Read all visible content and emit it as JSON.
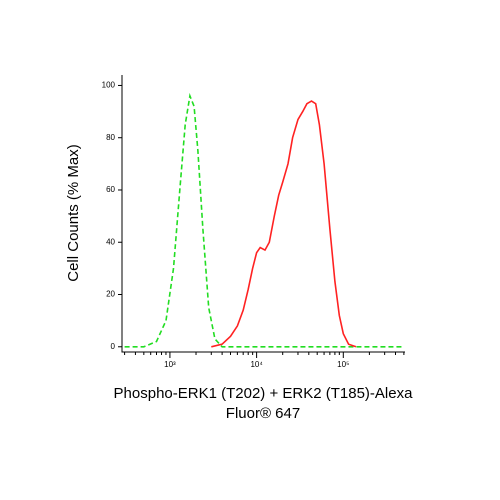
{
  "chart_data": {
    "type": "line",
    "xlabel": "Phospho-ERK1 (T202) + ERK2 (T185)-Alexa Fluor® 647",
    "ylabel": "Cell Counts (% Max)",
    "xscale": "log",
    "xlim": [
      280,
      515000
    ],
    "ylim": [
      -2,
      104
    ],
    "xticks": [
      {
        "value": 1000,
        "label": "10³"
      },
      {
        "value": 10000,
        "label": "10⁴"
      },
      {
        "value": 100000,
        "label": "10⁵"
      }
    ],
    "xminorticks": [
      300,
      400,
      500,
      600,
      700,
      800,
      900,
      2000,
      3000,
      4000,
      5000,
      6000,
      7000,
      8000,
      9000,
      20000,
      30000,
      40000,
      50000,
      60000,
      70000,
      80000,
      90000,
      200000,
      300000,
      400000,
      500000
    ],
    "yticks": [
      0,
      20,
      40,
      60,
      80,
      100
    ],
    "series": [
      {
        "color": "#22dd22",
        "dash": true,
        "x": [
          300,
          500,
          700,
          900,
          1100,
          1300,
          1500,
          1700,
          1900,
          2100,
          2400,
          2800,
          3300,
          4000,
          500000
        ],
        "values": [
          0,
          0,
          2,
          10,
          30,
          60,
          85,
          96,
          92,
          75,
          45,
          15,
          3,
          0,
          0
        ]
      },
      {
        "color": "#ff2222",
        "dash": false,
        "x": [
          3000,
          4000,
          5000,
          6000,
          7000,
          8000,
          9000,
          10000,
          11000,
          12500,
          14000,
          16000,
          18000,
          20000,
          23000,
          26000,
          30000,
          34000,
          38000,
          43000,
          48000,
          53000,
          60000,
          70000,
          80000,
          90000,
          100000,
          115000,
          140000
        ],
        "values": [
          0,
          1,
          4,
          8,
          14,
          22,
          30,
          36,
          38,
          37,
          40,
          50,
          58,
          63,
          70,
          80,
          87,
          90,
          93,
          94,
          93,
          85,
          70,
          45,
          25,
          12,
          5,
          1,
          0
        ]
      }
    ]
  }
}
